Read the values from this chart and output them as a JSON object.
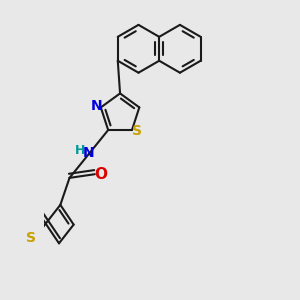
{
  "background_color": "#e8e8e8",
  "bond_color": "#1a1a1a",
  "bond_width": 1.5,
  "S_color": "#c8a000",
  "N_color": "#0000dd",
  "O_color": "#dd0000",
  "H_color": "#009999",
  "font_size": 10,
  "fig_size": [
    3.0,
    3.0
  ],
  "dpi": 100,
  "xlim": [
    -1.8,
    2.8
  ],
  "ylim": [
    -3.2,
    3.2
  ]
}
